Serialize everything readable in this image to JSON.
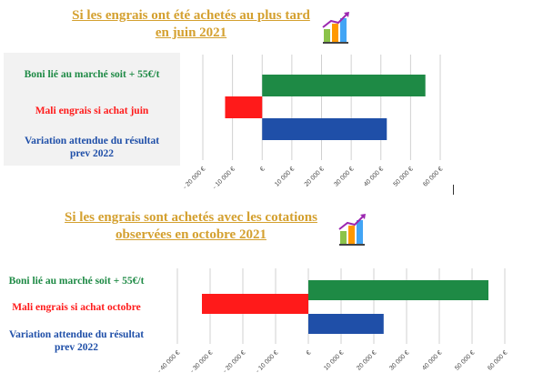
{
  "colors": {
    "title": "#d4a02f",
    "green": "#1e8a45",
    "red": "#ff1a1a",
    "blue": "#1f4fa8",
    "label_panel": "#f2f2f2",
    "grid": "#d0d0d0"
  },
  "icon": "bar-chart-arrow-icon",
  "chart_data": [
    {
      "type": "bar",
      "orientation": "horizontal",
      "title_lines": [
        "Si les engrais ont été achetés au plus tard",
        "en juin 2021"
      ],
      "categories": [
        "Boni lié au marché soit + 55€/t",
        "Mali engrais si achat juin",
        "Variation attendue du résultat prev 2022"
      ],
      "category_lines": [
        [
          "Boni lié au marché soit + 55€/t"
        ],
        [
          "Mali engrais si achat juin"
        ],
        [
          "Variation attendue du résultat",
          "prev 2022"
        ]
      ],
      "values": [
        55000,
        -12500,
        42000
      ],
      "xlim": [
        -20000,
        60000
      ],
      "ticks": [
        -20000,
        -10000,
        0,
        10000,
        20000,
        30000,
        40000,
        50000,
        60000
      ],
      "tick_labels": [
        "- 20 000 €",
        "- 10 000 €",
        "€",
        "10 000 €",
        "20 000 €",
        "30 000 €",
        "40 000 €",
        "50 000 €",
        "60 000 €"
      ],
      "grid": true
    },
    {
      "type": "bar",
      "orientation": "horizontal",
      "title_lines": [
        "Si les engrais sont achetés avec les cotations",
        "observées en octobre 2021"
      ],
      "categories": [
        "Boni lié au marché soit + 55€/t",
        "Mali engrais si achat octobre",
        "Variation attendue du résultat prev 2022"
      ],
      "category_lines": [
        [
          "Boni lié au marché soit + 55€/t"
        ],
        [
          "Mali engrais si achat octobre"
        ],
        [
          "Variation attendue du résultat",
          "prev 2022"
        ]
      ],
      "values": [
        55000,
        -32500,
        23000
      ],
      "xlim": [
        -40000,
        60000
      ],
      "ticks": [
        -40000,
        -30000,
        -20000,
        -10000,
        0,
        10000,
        20000,
        30000,
        40000,
        50000,
        60000
      ],
      "tick_labels": [
        "- 40 000 €",
        "- 30 000 €",
        "- 20 000 €",
        "- 10 000 €",
        "€",
        "10 000 €",
        "20 000 €",
        "30 000 €",
        "40 000 €",
        "50 000 €",
        "60 000 €"
      ],
      "grid": true
    }
  ]
}
